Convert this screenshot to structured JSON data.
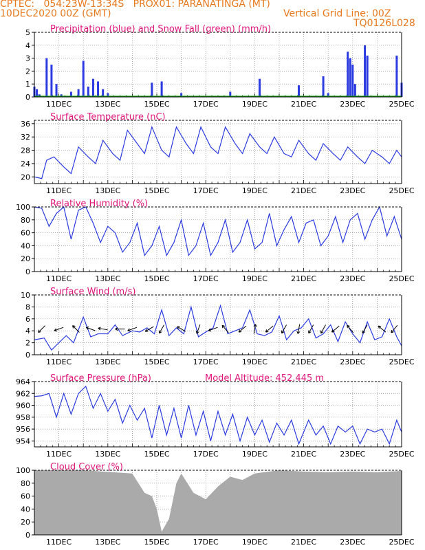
{
  "header": {
    "line1": "CPTEC:   054:23W-13:34S   PROX01: PARANATINGA (MT)",
    "line2_left": "10DEC2020 00Z (GMT)",
    "line2_right": "Vertical Grid Line: 00Z",
    "line3_right": "TQ0126L028"
  },
  "colors": {
    "header": "#e8781c",
    "title": "#e0157a",
    "series": "#2a3ae0",
    "snow": "#1aa51a",
    "cloud": "#aaaaaa",
    "grid": "#888888"
  },
  "date_labels": [
    "11DEC",
    "13DEC",
    "15DEC",
    "17DEC",
    "19DEC",
    "21DEC",
    "23DEC",
    "25DEC"
  ],
  "panels": [
    {
      "id": "precip",
      "title": "Precipitation (blue) and Snow Fall (green) (mm/h)",
      "yticks": [
        "0",
        "1",
        "2",
        "3",
        "4",
        "5"
      ],
      "ylim": [
        0,
        5
      ]
    },
    {
      "id": "temp",
      "title": "Surface Temperature (nC)",
      "yticks": [
        "20",
        "24",
        "28",
        "32",
        "36"
      ],
      "ylim": [
        18,
        37
      ]
    },
    {
      "id": "rh",
      "title": "Relative Humidity (%)",
      "yticks": [
        "0",
        "20",
        "40",
        "60",
        "80",
        "100"
      ],
      "ylim": [
        0,
        100
      ]
    },
    {
      "id": "wind",
      "title": "Surface Wind (m/s)",
      "yticks": [
        "0",
        "2",
        "4",
        "6",
        "8",
        "10"
      ],
      "ylim": [
        0,
        10
      ]
    },
    {
      "id": "pres",
      "title": "Surface Pressure (hPa)",
      "subtitle": "Model Altitude: 452.445 m",
      "yticks": [
        "954",
        "956",
        "958",
        "960",
        "962",
        "964"
      ],
      "ylim": [
        953,
        964
      ]
    },
    {
      "id": "cloud",
      "title": "Cloud Cover (%)",
      "yticks": [
        "0",
        "20",
        "40",
        "60",
        "80",
        "100"
      ],
      "ylim": [
        0,
        100
      ]
    }
  ],
  "chart_data": {
    "type": "line",
    "x_axis": {
      "start": "10DEC2020 00Z",
      "end": "25DEC2020 00Z",
      "unit": "day",
      "labels": [
        "11DEC",
        "13DEC",
        "15DEC",
        "17DEC",
        "19DEC",
        "21DEC",
        "23DEC",
        "25DEC"
      ]
    },
    "series": [
      {
        "panel": "temp",
        "x": [
          10.0,
          10.3,
          10.5,
          10.8,
          11.2,
          11.5,
          11.8,
          12.2,
          12.5,
          12.8,
          13.2,
          13.5,
          13.8,
          14.2,
          14.5,
          14.8,
          15.2,
          15.5,
          15.8,
          16.2,
          16.5,
          16.8,
          17.2,
          17.5,
          17.8,
          18.2,
          18.5,
          18.8,
          19.2,
          19.5,
          19.8,
          20.2,
          20.5,
          20.8,
          21.2,
          21.5,
          21.8,
          22.2,
          22.5,
          22.8,
          23.2,
          23.5,
          23.8,
          24.2,
          24.5,
          24.8,
          25.0
        ],
        "y": [
          20,
          19.5,
          25,
          26,
          23,
          21,
          29,
          26,
          24,
          31,
          27,
          25,
          34,
          30,
          27,
          35,
          28,
          26,
          35,
          30,
          27,
          35,
          29,
          27,
          35,
          30,
          27,
          33,
          29,
          27,
          32,
          27,
          26,
          31,
          27,
          25,
          30,
          27,
          25,
          29,
          26,
          24,
          28,
          26,
          24,
          28,
          26
        ]
      },
      {
        "panel": "rh",
        "x": [
          10.0,
          10.3,
          10.6,
          10.9,
          11.2,
          11.5,
          11.8,
          12.1,
          12.4,
          12.7,
          13.0,
          13.3,
          13.6,
          13.9,
          14.2,
          14.5,
          14.8,
          15.1,
          15.4,
          15.7,
          16.0,
          16.3,
          16.6,
          16.9,
          17.2,
          17.5,
          17.8,
          18.1,
          18.4,
          18.7,
          19.0,
          19.3,
          19.6,
          19.9,
          20.2,
          20.5,
          20.8,
          21.1,
          21.4,
          21.7,
          22.0,
          22.3,
          22.6,
          22.9,
          23.2,
          23.5,
          23.8,
          24.1,
          24.4,
          24.7,
          25.0
        ],
        "y": [
          100,
          98,
          70,
          90,
          100,
          50,
          95,
          100,
          75,
          45,
          70,
          60,
          30,
          45,
          75,
          25,
          40,
          70,
          25,
          45,
          80,
          25,
          40,
          75,
          25,
          45,
          80,
          30,
          45,
          80,
          35,
          45,
          90,
          40,
          65,
          85,
          45,
          75,
          80,
          40,
          55,
          85,
          45,
          80,
          90,
          50,
          80,
          100,
          55,
          85,
          50
        ]
      },
      {
        "panel": "wind",
        "x": [
          10.0,
          10.4,
          10.7,
          11.0,
          11.3,
          11.6,
          12.0,
          12.3,
          12.6,
          13.0,
          13.3,
          13.6,
          14.0,
          14.3,
          14.6,
          14.9,
          15.2,
          15.5,
          15.8,
          16.1,
          16.4,
          16.7,
          17.0,
          17.3,
          17.6,
          17.9,
          18.2,
          18.5,
          18.8,
          19.1,
          19.4,
          19.7,
          20.0,
          20.3,
          20.6,
          20.9,
          21.2,
          21.5,
          21.8,
          22.1,
          22.4,
          22.7,
          23.0,
          23.3,
          23.6,
          23.9,
          24.2,
          24.5,
          24.8,
          25.0
        ],
        "y": [
          2.5,
          2.8,
          0.8,
          2.0,
          3.2,
          2.0,
          6.3,
          3.0,
          3.5,
          3.5,
          5.0,
          3.2,
          4.0,
          3.8,
          4.5,
          3.5,
          7.5,
          3.2,
          4.5,
          3.5,
          8.0,
          3.0,
          3.8,
          4.5,
          8.2,
          3.5,
          4.0,
          4.5,
          7.5,
          3.5,
          3.2,
          3.8,
          6.5,
          2.5,
          4.0,
          4.5,
          6.0,
          2.8,
          3.5,
          5.0,
          2.2,
          5.5,
          3.5,
          2.0,
          5.5,
          2.5,
          3.0,
          6.0,
          3.0,
          1.5
        ]
      },
      {
        "panel": "pres",
        "x": [
          10.0,
          10.3,
          10.6,
          10.9,
          11.2,
          11.5,
          11.8,
          12.1,
          12.4,
          12.7,
          13.0,
          13.3,
          13.6,
          13.9,
          14.2,
          14.5,
          14.8,
          15.1,
          15.4,
          15.7,
          16.0,
          16.3,
          16.6,
          16.9,
          17.2,
          17.5,
          17.8,
          18.1,
          18.4,
          18.7,
          19.0,
          19.3,
          19.6,
          19.9,
          20.2,
          20.5,
          20.8,
          21.2,
          21.5,
          21.8,
          22.1,
          22.4,
          22.7,
          23.0,
          23.3,
          23.6,
          23.9,
          24.2,
          24.5,
          24.8,
          25.0
        ],
        "y": [
          961.5,
          961.6,
          962.0,
          958.0,
          962.0,
          958.5,
          962.0,
          963.2,
          959.5,
          962.0,
          959.0,
          961.0,
          957.0,
          960.0,
          957.5,
          959.5,
          954.5,
          960.0,
          955.0,
          959.5,
          954.5,
          960.0,
          955.0,
          959.0,
          954.0,
          959.0,
          955.0,
          958.5,
          954.0,
          958.0,
          955.0,
          957.5,
          953.8,
          957.0,
          955.0,
          957.5,
          953.5,
          957.5,
          955.0,
          956.5,
          953.5,
          956.5,
          955.5,
          956.5,
          953.5,
          956.0,
          955.5,
          956.0,
          953.5,
          957.5,
          955.5
        ]
      },
      {
        "panel": "cloud",
        "x": [
          10.0,
          12.0,
          14.0,
          14.5,
          14.8,
          15.0,
          15.2,
          15.5,
          15.8,
          16.0,
          16.5,
          17.0,
          17.5,
          18.0,
          18.5,
          19.0,
          20.0,
          21.0,
          22.0,
          23.0,
          24.0,
          25.0
        ],
        "y": [
          100,
          100,
          95,
          65,
          60,
          40,
          5,
          25,
          80,
          95,
          65,
          55,
          75,
          90,
          85,
          95,
          100,
          98,
          97,
          98,
          97,
          99
        ]
      }
    ],
    "precipitation": {
      "x": [
        10.0,
        10.1,
        10.2,
        10.5,
        10.7,
        10.9,
        11.1,
        11.5,
        11.8,
        12.0,
        12.2,
        12.4,
        12.6,
        12.8,
        13.0,
        14.8,
        15.2,
        16.0,
        18.0,
        19.2,
        20.8,
        21.8,
        22.0,
        22.8,
        22.9,
        23.0,
        23.1,
        23.5,
        23.6,
        24.8,
        25.0
      ],
      "y": [
        0.8,
        0.6,
        0.2,
        3.0,
        2.5,
        1.0,
        0.2,
        0.4,
        0.6,
        2.8,
        0.8,
        1.4,
        1.2,
        0.6,
        0.3,
        1.1,
        1.2,
        0.3,
        0.4,
        1.4,
        0.9,
        1.6,
        0.3,
        3.5,
        3.0,
        2.5,
        1.0,
        4.0,
        3.2,
        3.2,
        1.1
      ]
    },
    "wind_direction_arrows": {
      "x": [
        10.3,
        11.0,
        11.7,
        12.3,
        12.8,
        13.5,
        14.0,
        14.7,
        15.2,
        16.0,
        16.7,
        17.3,
        17.8,
        18.5,
        19.0,
        19.6,
        20.2,
        20.8,
        21.3,
        21.8,
        22.3,
        22.9,
        23.5,
        24.2,
        24.7
      ],
      "angle_deg": [
        225,
        200,
        135,
        160,
        170,
        180,
        200,
        210,
        240,
        150,
        250,
        200,
        130,
        220,
        80,
        220,
        240,
        260,
        240,
        240,
        220,
        130,
        240,
        140,
        230
      ]
    }
  }
}
